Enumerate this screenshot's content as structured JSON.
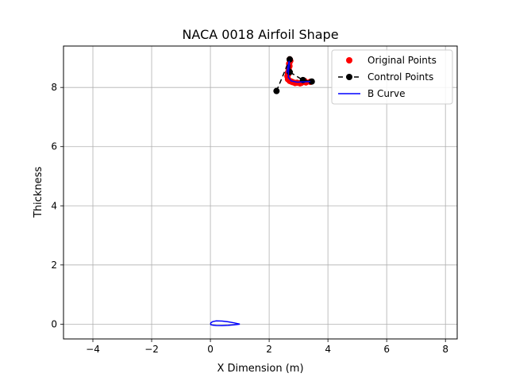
{
  "chart_data": {
    "type": "scatter",
    "title": "NACA 0018 Airfoil Shape",
    "xlabel": "X Dimension (m)",
    "ylabel": "Thickness",
    "xlim": [
      -5,
      8.4
    ],
    "ylim": [
      -0.5,
      9.4
    ],
    "xticks": [
      -4,
      -2,
      0,
      2,
      4,
      6,
      8
    ],
    "yticks": [
      0,
      2,
      4,
      6,
      8
    ],
    "grid": true,
    "legend_position": "top-right",
    "legend": [
      {
        "label": "Original Points",
        "marker": "point",
        "color": "#ff0000"
      },
      {
        "label": "Control Points",
        "marker": "point-dashed-line",
        "color": "#000000"
      },
      {
        "label": "B Curve",
        "marker": "line",
        "color": "#0000ff"
      }
    ],
    "series": [
      {
        "name": "Original Points",
        "color": "#ff0000",
        "points": [
          [
            2.7,
            8.95
          ],
          [
            2.68,
            8.8
          ],
          [
            2.66,
            8.65
          ],
          [
            2.64,
            8.5
          ],
          [
            2.62,
            8.38
          ],
          [
            2.64,
            8.28
          ],
          [
            2.7,
            8.22
          ],
          [
            2.8,
            8.18
          ],
          [
            2.95,
            8.16
          ],
          [
            3.1,
            8.16
          ],
          [
            3.25,
            8.17
          ],
          [
            3.4,
            8.19
          ],
          [
            2.72,
            8.9
          ],
          [
            2.69,
            8.72
          ],
          [
            2.67,
            8.58
          ],
          [
            2.65,
            8.45
          ],
          [
            2.75,
            8.2
          ],
          [
            2.88,
            8.15
          ],
          [
            3.05,
            8.14
          ],
          [
            3.2,
            8.22
          ]
        ]
      },
      {
        "name": "Control Points",
        "color": "#000000",
        "points": [
          [
            2.25,
            7.88
          ],
          [
            2.7,
            8.95
          ],
          [
            2.7,
            8.52
          ],
          [
            3.15,
            8.25
          ],
          [
            3.45,
            8.2
          ]
        ]
      },
      {
        "name": "B Curve",
        "color": "#0000ff",
        "segments": [
          [
            [
              2.6,
              8.5
            ],
            [
              2.64,
              8.7
            ],
            [
              2.68,
              8.9
            ],
            [
              2.69,
              8.8
            ],
            [
              2.66,
              8.55
            ],
            [
              2.65,
              8.35
            ],
            [
              2.75,
              8.22
            ],
            [
              2.95,
              8.18
            ],
            [
              3.2,
              8.19
            ],
            [
              3.4,
              8.2
            ]
          ],
          [
            [
              0.0,
              0.0
            ],
            [
              0.02,
              0.05
            ],
            [
              0.08,
              0.085
            ],
            [
              0.2,
              0.11
            ],
            [
              0.4,
              0.105
            ],
            [
              0.6,
              0.08
            ],
            [
              0.8,
              0.045
            ],
            [
              1.0,
              0.0
            ],
            [
              0.8,
              -0.025
            ],
            [
              0.6,
              -0.04
            ],
            [
              0.4,
              -0.05
            ],
            [
              0.2,
              -0.048
            ],
            [
              0.08,
              -0.035
            ],
            [
              0.02,
              -0.02
            ],
            [
              0.0,
              0.0
            ]
          ]
        ]
      }
    ]
  }
}
